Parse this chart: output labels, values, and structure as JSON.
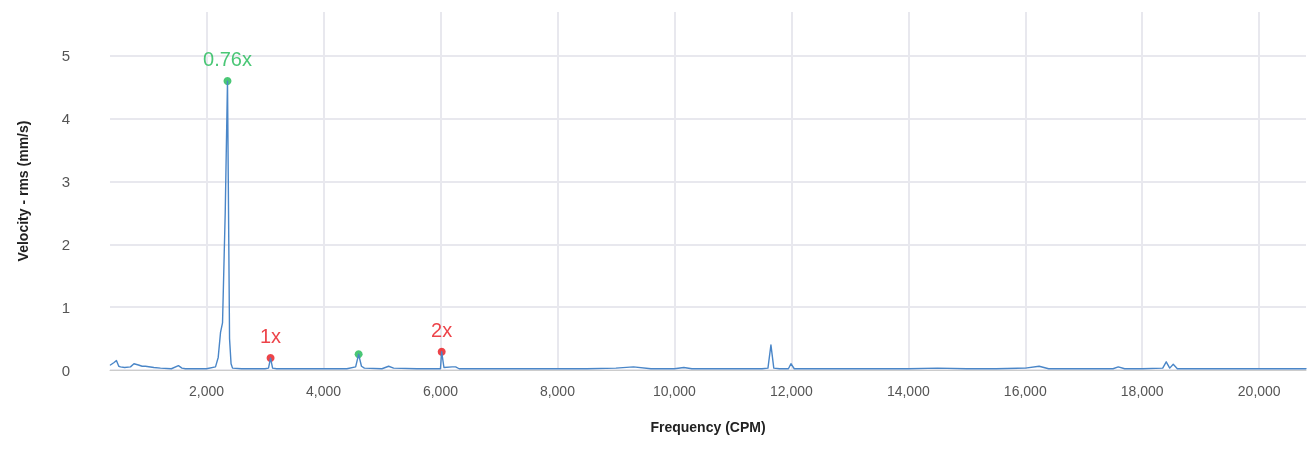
{
  "chart_data": {
    "type": "line",
    "xlabel": "Frequency (CPM)",
    "ylabel": "Velocity - rms (mm/s)",
    "xlim": [
      350,
      20800
    ],
    "ylim": [
      0,
      5.7
    ],
    "xticks": [
      {
        "value": 2000,
        "label": "2,000"
      },
      {
        "value": 4000,
        "label": "4,000"
      },
      {
        "value": 6000,
        "label": "6,000"
      },
      {
        "value": 8000,
        "label": "8,000"
      },
      {
        "value": 10000,
        "label": "10,000"
      },
      {
        "value": 12000,
        "label": "12,000"
      },
      {
        "value": 14000,
        "label": "14,000"
      },
      {
        "value": 16000,
        "label": "16,000"
      },
      {
        "value": 18000,
        "label": "18,000"
      },
      {
        "value": 20000,
        "label": "20,000"
      }
    ],
    "yticks": [
      0,
      1,
      2,
      3,
      4,
      5
    ],
    "grid": true,
    "line_style": "solid",
    "annotations": [
      {
        "text": "0.76x",
        "x": 2359,
        "y": 4.6
      },
      {
        "text": "1x",
        "x": 3095,
        "y": 0.19
      },
      {
        "text": "2x",
        "x": 6021,
        "y": 0.29
      }
    ],
    "series": [
      {
        "color": "#4a86c8",
        "x": [
          357,
          420,
          460,
          500,
          529,
          600,
          700,
          760,
          837,
          900,
          956,
          1100,
          1213,
          1400,
          1520,
          1580,
          1640,
          1800,
          2000,
          2154,
          2200,
          2240,
          2274,
          2320,
          2359,
          2394,
          2420,
          2445,
          2600,
          2800,
          3000,
          3060,
          3095,
          3130,
          3200,
          3600,
          4000,
          4400,
          4550,
          4601,
          4650,
          4700,
          5000,
          5114,
          5200,
          5600,
          6000,
          6021,
          6060,
          6200,
          6260,
          6320,
          7000,
          7500,
          8000,
          8500,
          9000,
          9300,
          9600,
          10000,
          10162,
          10300,
          11000,
          11500,
          11600,
          11651,
          11700,
          11800,
          11950,
          11993,
          12050,
          12500,
          13000,
          13500,
          14000,
          14500,
          15000,
          15500,
          16000,
          16237,
          16400,
          17000,
          17500,
          17590,
          17700,
          18000,
          18350,
          18410,
          18470,
          18530,
          18600,
          19000,
          19500,
          20000,
          20500,
          20800
        ],
        "values": [
          0.08,
          0.12,
          0.15,
          0.06,
          0.05,
          0.04,
          0.05,
          0.1,
          0.08,
          0.06,
          0.06,
          0.04,
          0.03,
          0.02,
          0.07,
          0.03,
          0.02,
          0.02,
          0.02,
          0.05,
          0.2,
          0.6,
          0.75,
          2.5,
          4.6,
          0.5,
          0.1,
          0.03,
          0.02,
          0.02,
          0.02,
          0.03,
          0.19,
          0.03,
          0.02,
          0.02,
          0.02,
          0.02,
          0.05,
          0.25,
          0.06,
          0.03,
          0.02,
          0.06,
          0.03,
          0.02,
          0.02,
          0.29,
          0.04,
          0.05,
          0.05,
          0.02,
          0.02,
          0.02,
          0.02,
          0.02,
          0.03,
          0.05,
          0.02,
          0.02,
          0.04,
          0.02,
          0.02,
          0.02,
          0.03,
          0.4,
          0.03,
          0.02,
          0.02,
          0.1,
          0.02,
          0.02,
          0.02,
          0.02,
          0.02,
          0.03,
          0.02,
          0.02,
          0.03,
          0.06,
          0.02,
          0.02,
          0.02,
          0.05,
          0.02,
          0.02,
          0.03,
          0.13,
          0.03,
          0.09,
          0.02,
          0.02,
          0.02,
          0.02,
          0.02,
          0.02
        ]
      },
      {
        "type": "scatter",
        "marker": "circle",
        "x": [
          2359,
          3095,
          4601,
          6021
        ],
        "values": [
          4.6,
          0.19,
          0.25,
          0.29
        ],
        "colors": [
          "#1db954",
          "#e8141b",
          "#1db954",
          "#e8141b"
        ]
      }
    ]
  }
}
